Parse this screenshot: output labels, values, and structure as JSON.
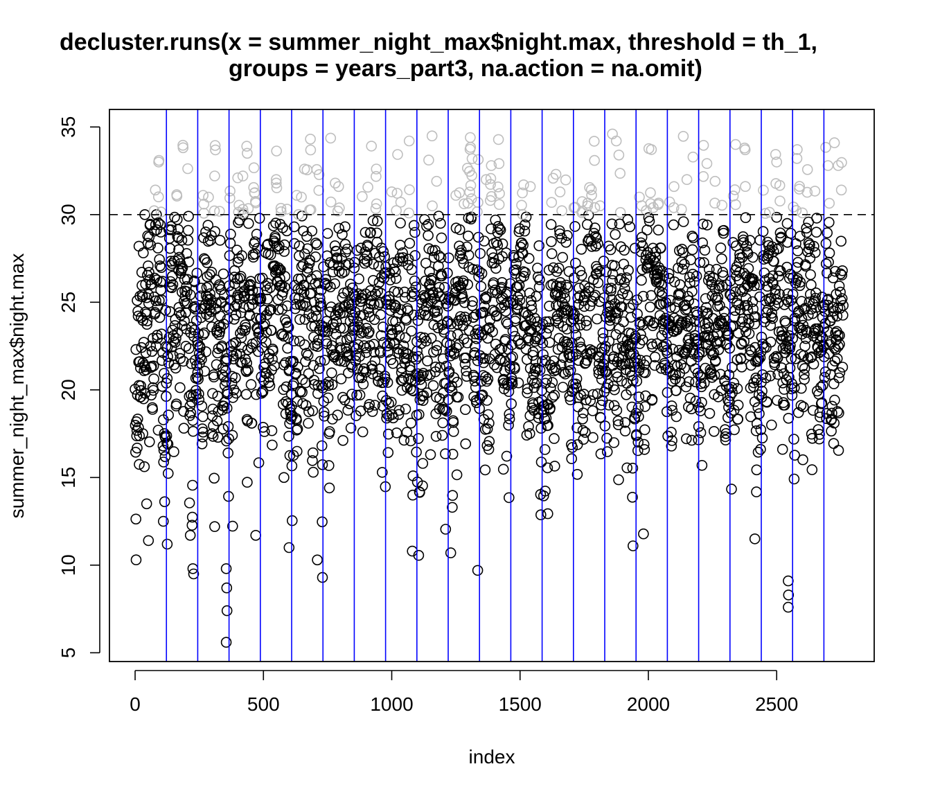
{
  "chart_data": {
    "type": "scatter",
    "title_lines": [
      "decluster.runs(x = summer_night_max$night.max, threshold = th_1,",
      "groups = years_part3, na.action = na.omit)"
    ],
    "xlabel": "index",
    "ylabel": "summer_night_max$night.max",
    "xlim": [
      -100,
      2880
    ],
    "ylim": [
      4.5,
      36
    ],
    "xticks": [
      0,
      500,
      1000,
      1500,
      2000,
      2500
    ],
    "yticks": [
      5,
      10,
      15,
      20,
      25,
      30,
      35
    ],
    "threshold": 30,
    "group_boundaries": [
      122,
      244,
      366,
      488,
      610,
      732,
      854,
      976,
      1098,
      1220,
      1342,
      1464,
      1586,
      1708,
      1830,
      1952,
      2074,
      2196,
      2318,
      2440,
      2562,
      2684
    ],
    "n_points": 2760,
    "group_size": 122,
    "colors": {
      "points": "#000000",
      "exceedances": "#bebebe",
      "group_lines": "#0000ff",
      "threshold_line": "#000000"
    },
    "sampled_points": [
      {
        "x": 3,
        "y": 22.3
      },
      {
        "x": 8,
        "y": 25.1
      },
      {
        "x": 15,
        "y": 28.2
      },
      {
        "x": 22,
        "y": 19.6
      },
      {
        "x": 30,
        "y": 17.5
      },
      {
        "x": 38,
        "y": 30.0
      },
      {
        "x": 45,
        "y": 13.5
      },
      {
        "x": 52,
        "y": 11.4
      },
      {
        "x": 60,
        "y": 22.5
      },
      {
        "x": 75,
        "y": 25.3
      },
      {
        "x": 90,
        "y": 17.7
      },
      {
        "x": 100,
        "y": 29.0
      },
      {
        "x": 110,
        "y": 12.5
      },
      {
        "x": 125,
        "y": 11.2
      },
      {
        "x": 140,
        "y": 27.1
      },
      {
        "x": 170,
        "y": 28.0
      },
      {
        "x": 215,
        "y": 11.7
      },
      {
        "x": 225,
        "y": 9.8
      },
      {
        "x": 228,
        "y": 9.5
      },
      {
        "x": 265,
        "y": 31.1
      },
      {
        "x": 268,
        "y": 30.6
      },
      {
        "x": 310,
        "y": 12.2
      },
      {
        "x": 330,
        "y": 25.9
      },
      {
        "x": 355,
        "y": 9.8
      },
      {
        "x": 357,
        "y": 8.7
      },
      {
        "x": 358,
        "y": 7.4
      },
      {
        "x": 355,
        "y": 5.6
      },
      {
        "x": 400,
        "y": 32.1
      },
      {
        "x": 420,
        "y": 32.2
      },
      {
        "x": 435,
        "y": 33.9
      },
      {
        "x": 437,
        "y": 33.5
      },
      {
        "x": 470,
        "y": 11.7
      },
      {
        "x": 550,
        "y": 32.0
      },
      {
        "x": 580,
        "y": 15.0
      },
      {
        "x": 600,
        "y": 11.0
      },
      {
        "x": 630,
        "y": 31.1
      },
      {
        "x": 660,
        "y": 32.6
      },
      {
        "x": 710,
        "y": 10.3
      },
      {
        "x": 730,
        "y": 9.3
      },
      {
        "x": 780,
        "y": 31.8
      },
      {
        "x": 790,
        "y": 30.2
      },
      {
        "x": 1000,
        "y": 31.3
      },
      {
        "x": 1080,
        "y": 10.8
      },
      {
        "x": 1175,
        "y": 31.9
      },
      {
        "x": 1250,
        "y": 31.1
      },
      {
        "x": 1230,
        "y": 10.7
      },
      {
        "x": 1335,
        "y": 9.7
      },
      {
        "x": 1368,
        "y": 32.0
      },
      {
        "x": 1420,
        "y": 31.2
      },
      {
        "x": 1540,
        "y": 31.6
      },
      {
        "x": 1640,
        "y": 32.3
      },
      {
        "x": 1710,
        "y": 30.4
      },
      {
        "x": 1860,
        "y": 34.6
      },
      {
        "x": 1875,
        "y": 34.2
      },
      {
        "x": 1885,
        "y": 33.4
      },
      {
        "x": 1940,
        "y": 11.1
      },
      {
        "x": 1965,
        "y": 31.0
      },
      {
        "x": 2100,
        "y": 31.6
      },
      {
        "x": 2150,
        "y": 32.0
      },
      {
        "x": 2260,
        "y": 31.9
      },
      {
        "x": 2340,
        "y": 34.0
      },
      {
        "x": 2375,
        "y": 33.8
      },
      {
        "x": 2415,
        "y": 11.5
      },
      {
        "x": 2500,
        "y": 33.0
      },
      {
        "x": 2545,
        "y": 9.1
      },
      {
        "x": 2546,
        "y": 8.3
      },
      {
        "x": 2545,
        "y": 7.6
      },
      {
        "x": 2600,
        "y": 30.1
      },
      {
        "x": 2700,
        "y": 32.8
      },
      {
        "x": 2725,
        "y": 34.1
      },
      {
        "x": 2740,
        "y": 32.8
      },
      {
        "x": 2745,
        "y": 22.6
      }
    ]
  }
}
